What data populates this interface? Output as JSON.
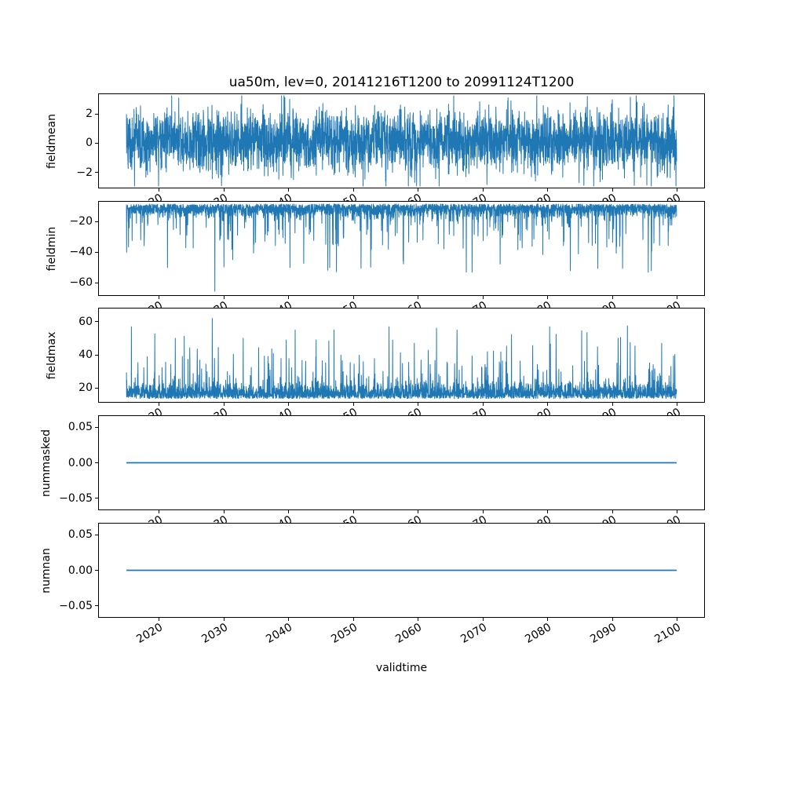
{
  "title": "ua50m, lev=0, 20141216T1200 to 20991124T1200",
  "xlabel": "validtime",
  "chart_data": {
    "type": "line",
    "line_color": "#1f77b4",
    "x_range": [
      2014.96,
      2099.9
    ],
    "xlim": [
      2010.71,
      2104.15
    ],
    "xtick_vals": [
      2020,
      2030,
      2040,
      2050,
      2060,
      2070,
      2080,
      2090,
      2100
    ],
    "xtick_labels": [
      "2020",
      "2030",
      "2040",
      "2050",
      "2060",
      "2070",
      "2080",
      "2090",
      "2100"
    ],
    "subplots": [
      {
        "ylabel": "fieldmean",
        "ylim": [
          -3.05,
          3.35
        ],
        "ytick_vals": [
          2,
          0,
          -2
        ],
        "ytick_labels": [
          "2",
          "0",
          "−2"
        ],
        "series": {
          "kind": "noise",
          "mean": 0.15,
          "sd": 1.05,
          "min": -2.95,
          "max": 3.25
        }
      },
      {
        "ylabel": "fieldmin",
        "ylim": [
          -68,
          -7
        ],
        "ytick_vals": [
          -20,
          -40,
          -60
        ],
        "ytick_labels": [
          "−20",
          "−40",
          "−60"
        ],
        "series": {
          "kind": "noise-spikes-down",
          "base": -8.5,
          "sd": 4.0,
          "spike_p": 0.07,
          "spike_amp": 25,
          "deep_p": 0.008,
          "deep_extra": 20,
          "floor": -53,
          "extremes": [
            {
              "x": 2028.6,
              "v": -65.5
            },
            {
              "x": 2021.3,
              "v": -50
            },
            {
              "x": 2040.2,
              "v": -50
            },
            {
              "x": 2083.5,
              "v": -52
            },
            {
              "x": 2096.0,
              "v": -52
            }
          ]
        }
      },
      {
        "ylabel": "fieldmax",
        "ylim": [
          11.5,
          68
        ],
        "ytick_vals": [
          60,
          40,
          20
        ],
        "ytick_labels": [
          "60",
          "40",
          "20"
        ],
        "series": {
          "kind": "noise-spikes-up",
          "base": 13.5,
          "sd": 4.5,
          "spike_p": 0.06,
          "spike_amp": 22,
          "deep_p": 0.009,
          "deep_extra": 18,
          "ceil": 57,
          "extremes": [
            {
              "x": 2022.5,
              "v": 50
            },
            {
              "x": 2028.2,
              "v": 62
            },
            {
              "x": 2033.0,
              "v": 50
            },
            {
              "x": 2041.0,
              "v": 55
            },
            {
              "x": 2047.0,
              "v": 55
            },
            {
              "x": 2055.5,
              "v": 57
            },
            {
              "x": 2066.0,
              "v": 55
            },
            {
              "x": 2080.3,
              "v": 57
            },
            {
              "x": 2092.3,
              "v": 57.5
            }
          ]
        }
      },
      {
        "ylabel": "nummasked",
        "ylim": [
          -0.066,
          0.066
        ],
        "ytick_vals": [
          0.05,
          0.0,
          -0.05
        ],
        "ytick_labels": [
          "0.05",
          "0.00",
          "−0.05"
        ],
        "series": {
          "kind": "constant",
          "value": 0
        }
      },
      {
        "ylabel": "numnan",
        "ylim": [
          -0.066,
          0.066
        ],
        "ytick_vals": [
          0.05,
          0.0,
          -0.05
        ],
        "ytick_labels": [
          "0.05",
          "0.00",
          "−0.05"
        ],
        "series": {
          "kind": "constant",
          "value": 0
        }
      }
    ]
  }
}
